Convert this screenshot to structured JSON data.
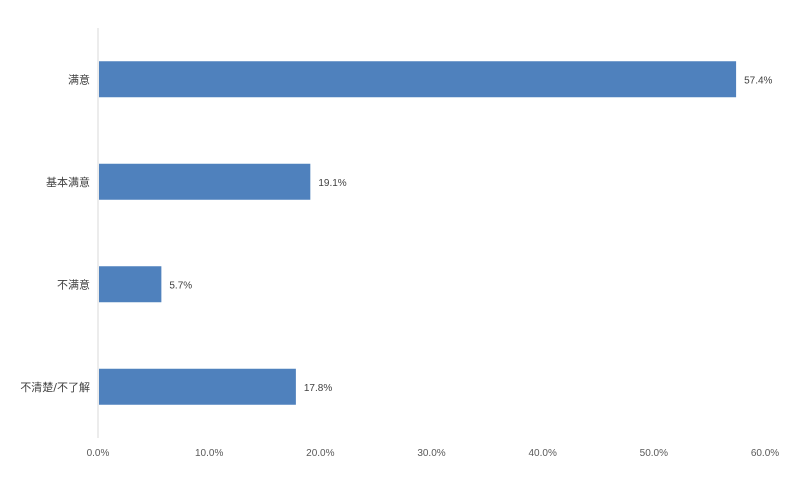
{
  "chart_data": {
    "type": "bar",
    "orientation": "horizontal",
    "categories": [
      "满意",
      "基本满意",
      "不满意",
      "不清楚/不了解"
    ],
    "values": [
      57.4,
      19.1,
      5.7,
      17.8
    ],
    "data_labels": [
      "57.4%",
      "19.1%",
      "5.7%",
      "17.8%"
    ],
    "x_ticks": [
      "0.0%",
      "10.0%",
      "20.0%",
      "30.0%",
      "40.0%",
      "50.0%",
      "60.0%"
    ],
    "xlim": [
      0,
      60
    ],
    "title": "",
    "xlabel": "",
    "ylabel": "",
    "grid": false,
    "legend": "none",
    "bar_color": "#4f81bd",
    "axis_color": "#d9d9d9"
  }
}
